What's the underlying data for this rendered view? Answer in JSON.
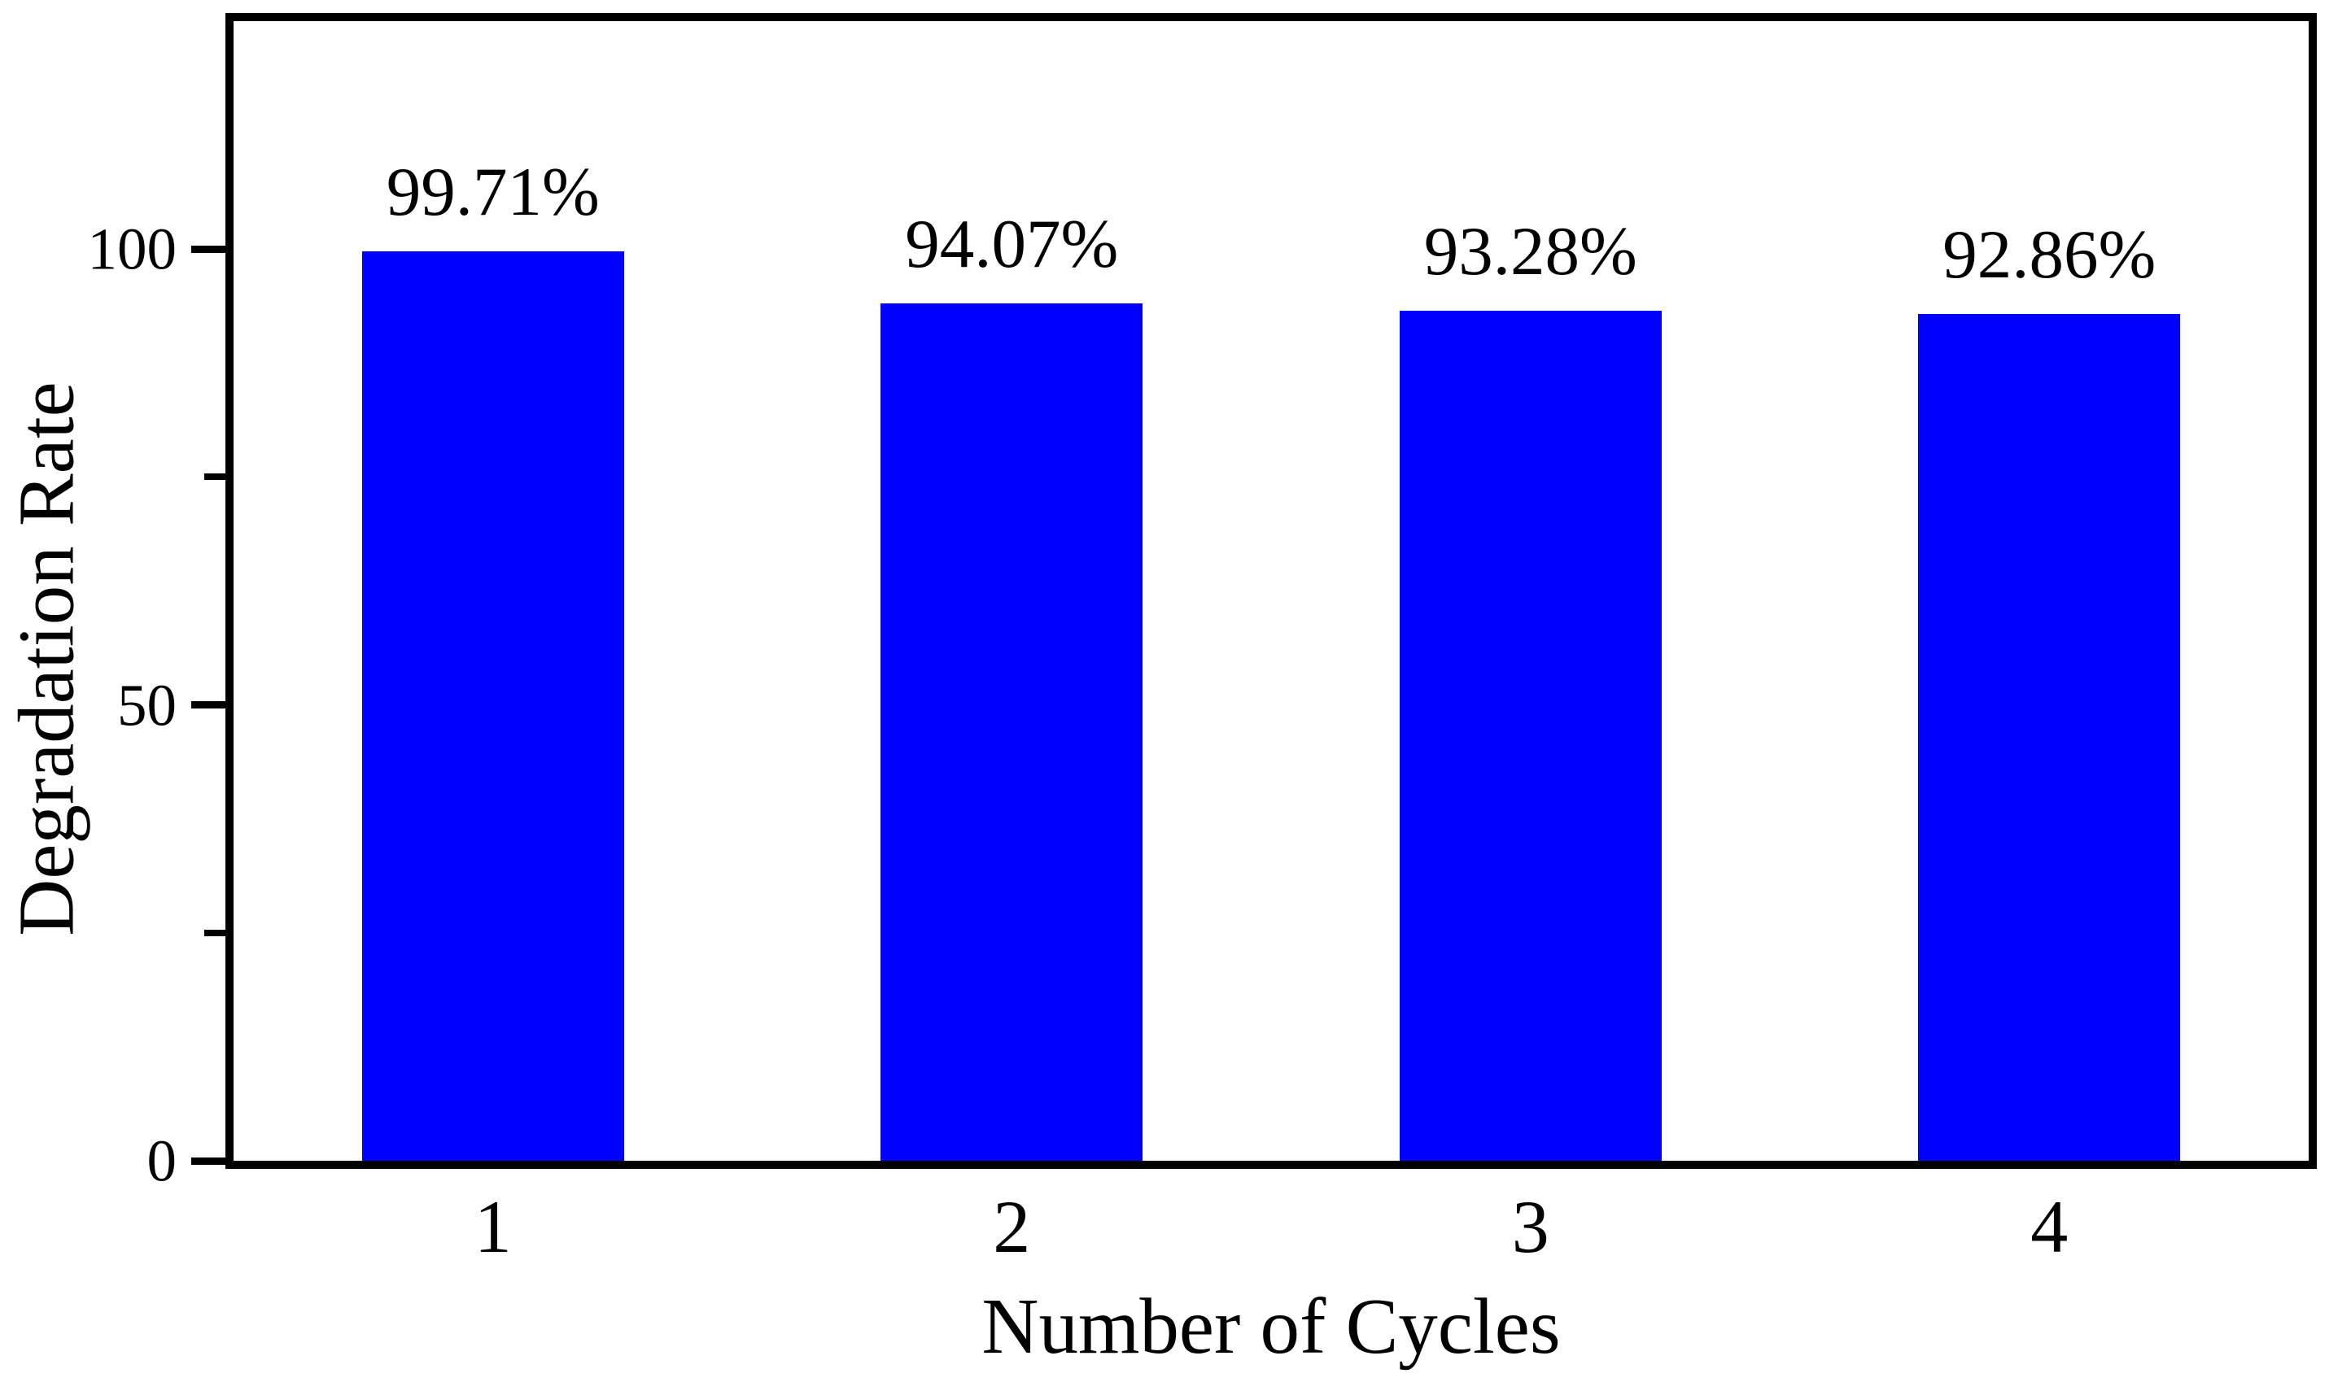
{
  "chart_data": {
    "type": "bar",
    "title": "",
    "xlabel": "Number of Cycles",
    "ylabel": "Degradation Rate",
    "categories": [
      "1",
      "2",
      "3",
      "4"
    ],
    "values": [
      99.71,
      94.07,
      93.28,
      92.86
    ],
    "value_labels": [
      "99.71%",
      "94.07%",
      "93.28%",
      "92.86%"
    ],
    "ylim": [
      0,
      125
    ],
    "yticks_major": [
      0,
      50,
      100
    ],
    "yticks_minor": [
      25,
      75
    ],
    "grid": false,
    "legend": null,
    "bar_color": "#0000fe",
    "axis_color": "#000000",
    "background_color": "#ffffff",
    "bar_width_fraction": 0.505
  }
}
